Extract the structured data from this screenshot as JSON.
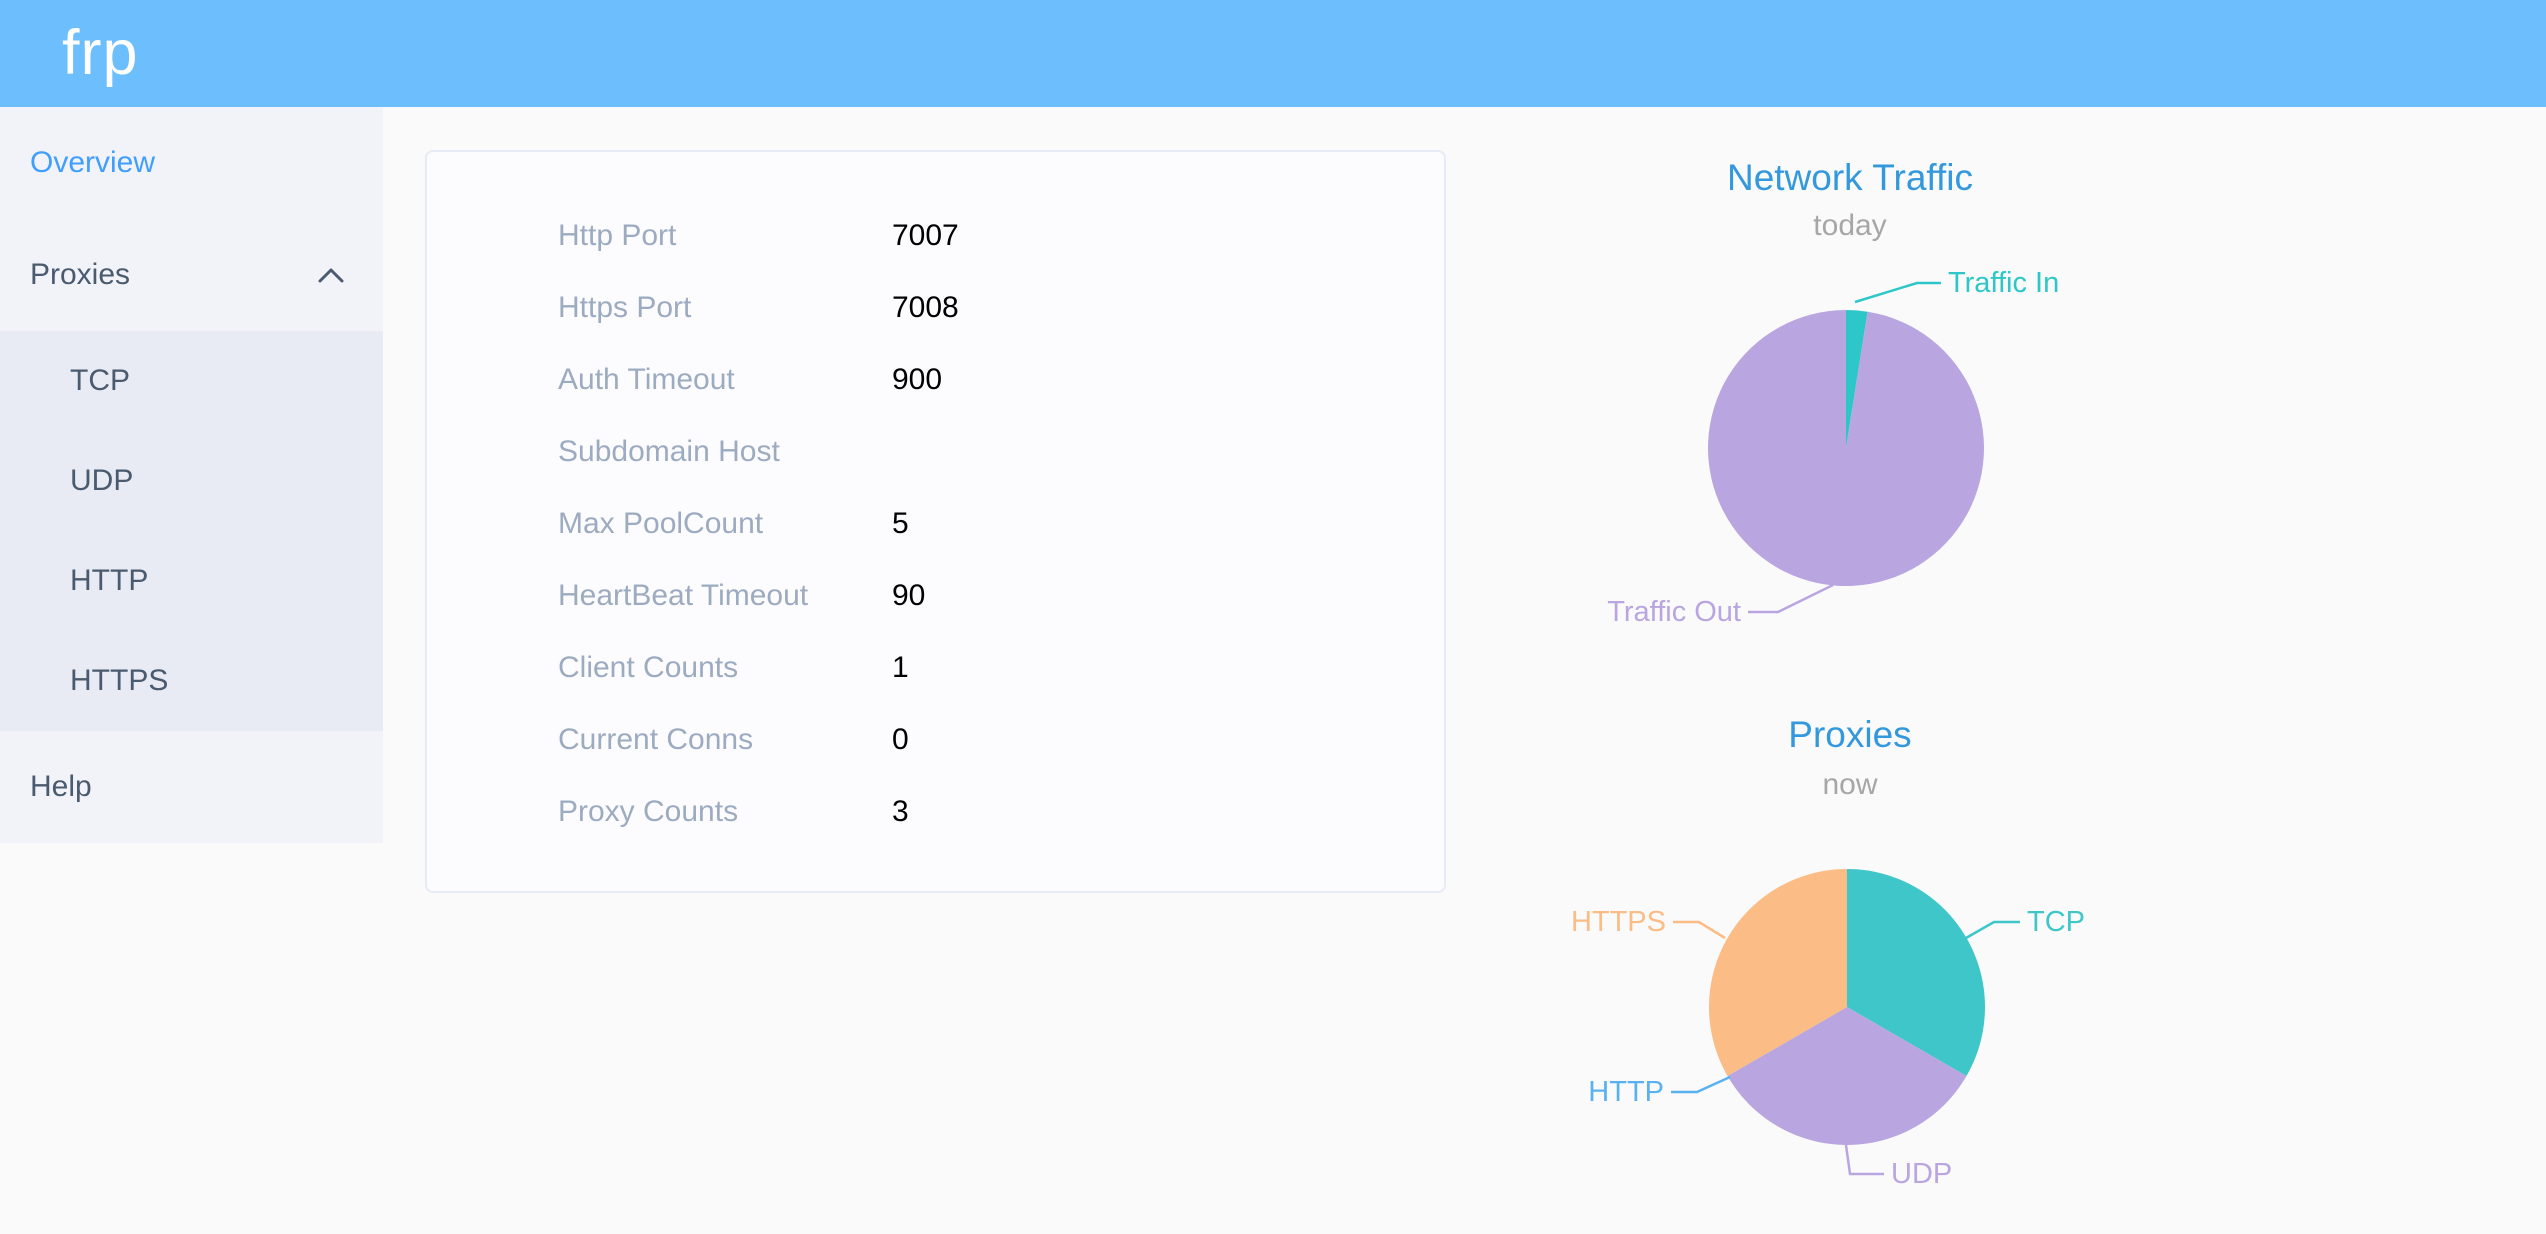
{
  "header": {
    "logo": "frp"
  },
  "sidebar": {
    "overview_label": "Overview",
    "proxies_label": "Proxies",
    "proxies_expanded": true,
    "proxy_types": [
      "TCP",
      "UDP",
      "HTTP",
      "HTTPS"
    ],
    "help_label": "Help"
  },
  "overview": {
    "rows": [
      {
        "label": "Http Port",
        "value": "7007"
      },
      {
        "label": "Https Port",
        "value": "7008"
      },
      {
        "label": "Auth Timeout",
        "value": "900"
      },
      {
        "label": "Subdomain Host",
        "value": ""
      },
      {
        "label": "Max PoolCount",
        "value": "5"
      },
      {
        "label": "HeartBeat Timeout",
        "value": "90"
      },
      {
        "label": "Client Counts",
        "value": "1"
      },
      {
        "label": "Current Conns",
        "value": "0"
      },
      {
        "label": "Proxy Counts",
        "value": "3"
      }
    ]
  },
  "chart_data": [
    {
      "type": "pie",
      "title": "Network Traffic",
      "subtitle": "today",
      "legend": false,
      "labels": "leader-lines",
      "values_unit": "percent of total traffic (estimated from slice angles)",
      "series": [
        {
          "name": "Traffic In",
          "value": 2.5,
          "color": "#2ec7c9"
        },
        {
          "name": "Traffic Out",
          "value": 97.5,
          "color": "#b9a5e0"
        }
      ]
    },
    {
      "type": "pie",
      "title": "Proxies",
      "subtitle": "now",
      "legend": false,
      "labels": "leader-lines",
      "values_unit": "proxy count per type (total = 3)",
      "series": [
        {
          "name": "TCP",
          "value": 1,
          "color": "#3ec6c8"
        },
        {
          "name": "UDP",
          "value": 1,
          "color": "#b9a5e0"
        },
        {
          "name": "HTTP",
          "value": 0,
          "color": "#5ab1ef"
        },
        {
          "name": "HTTPS",
          "value": 1,
          "color": "#fbbc85"
        }
      ]
    }
  ],
  "colors": {
    "header_bg": "#6cbefc",
    "sidebar_bg": "#f1f3f8",
    "submenu_bg": "#e8ebf3",
    "page_bg": "#fafafb",
    "active_menu_item": "#409eff",
    "menu_item_text": "#4a5a6f",
    "card_border": "#e7ebf7",
    "config_label": "#9cabc0",
    "config_value": "#000000",
    "chart_title": "#3398dc",
    "chart_subtitle": "#a6a6a6"
  }
}
